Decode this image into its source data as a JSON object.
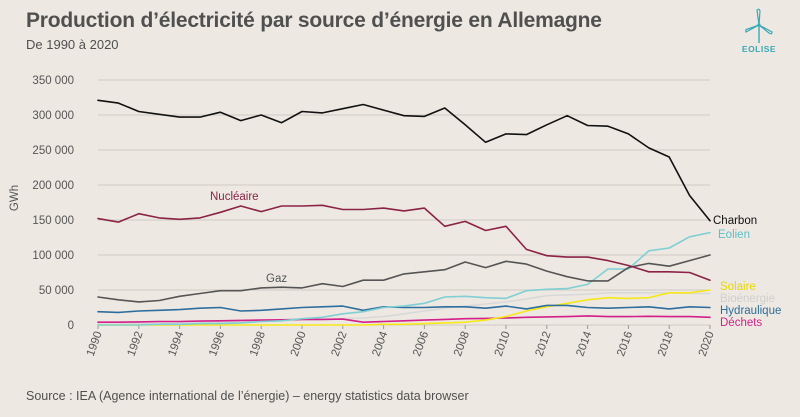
{
  "title": "Production d’électricité par source d’énergie en Allemagne",
  "subtitle": "De 1990 à 2020",
  "source": "Source : IEA (Agence international de l’énergie) – energy statistics data browser",
  "logo": {
    "text": "EOLISE"
  },
  "colors": {
    "background": "#ede8e2",
    "grid": "#cfcac4"
  },
  "chart_data": {
    "type": "line",
    "title": "Production d’électricité par source d’énergie en Allemagne",
    "subtitle": "De 1990 à 2020",
    "xlabel": "",
    "ylabel": "GWh",
    "xlim": [
      1990,
      2020
    ],
    "ylim": [
      0,
      350000
    ],
    "grid": true,
    "y_ticks": [
      0,
      50000,
      100000,
      150000,
      200000,
      250000,
      300000,
      350000
    ],
    "y_tick_labels": [
      "0",
      "50 000",
      "100 000",
      "150 000",
      "200 000",
      "250 000",
      "300 000",
      "350 000"
    ],
    "x_ticks": [
      1990,
      1992,
      1994,
      1996,
      1998,
      2000,
      2002,
      2004,
      2006,
      2008,
      2010,
      2012,
      2014,
      2016,
      2018,
      2020
    ],
    "x_tick_labels": [
      "1990",
      "1992",
      "1994",
      "1996",
      "1998",
      "2000",
      "2002",
      "2004",
      "2006",
      "2008",
      "2010",
      "2012",
      "2014",
      "2016",
      "2018",
      "2020"
    ],
    "x": [
      1990,
      1991,
      1992,
      1993,
      1994,
      1995,
      1996,
      1997,
      1998,
      1999,
      2000,
      2001,
      2002,
      2003,
      2004,
      2005,
      2006,
      2007,
      2008,
      2009,
      2010,
      2011,
      2012,
      2013,
      2014,
      2015,
      2016,
      2017,
      2018,
      2019,
      2020
    ],
    "series": [
      {
        "name": "Charbon",
        "color": "#111111",
        "values": [
          321000,
          317000,
          305000,
          301000,
          297000,
          297000,
          304000,
          292000,
          300000,
          289000,
          305000,
          303000,
          309000,
          315000,
          307000,
          299000,
          298000,
          310000,
          286000,
          261000,
          273000,
          272000,
          286000,
          299000,
          285000,
          284000,
          273000,
          253000,
          240000,
          185000,
          149000
        ]
      },
      {
        "name": "Nucléaire",
        "color": "#8b2346",
        "values": [
          152000,
          147000,
          159000,
          153000,
          151000,
          153000,
          161000,
          170000,
          162000,
          170000,
          170000,
          171000,
          165000,
          165000,
          167000,
          163000,
          167000,
          141000,
          148000,
          135000,
          141000,
          108000,
          99000,
          97000,
          97000,
          92000,
          85000,
          76000,
          76000,
          75000,
          64000
        ]
      },
      {
        "name": "Gaz",
        "color": "#555555",
        "values": [
          40000,
          36000,
          33000,
          35000,
          41000,
          45000,
          49000,
          49000,
          53000,
          54000,
          53000,
          59000,
          55000,
          64000,
          64000,
          73000,
          76000,
          79000,
          90000,
          82000,
          91000,
          87000,
          77000,
          69000,
          63000,
          63000,
          82000,
          88000,
          84000,
          92000,
          100000
        ]
      },
      {
        "name": "Eolien",
        "color": "#7fcfd4",
        "values": [
          0,
          0,
          0,
          1000,
          1000,
          2000,
          2000,
          3000,
          5000,
          6000,
          9000,
          11000,
          16000,
          19000,
          25000,
          27000,
          31000,
          40000,
          41000,
          39000,
          38000,
          49000,
          51000,
          52000,
          58000,
          80000,
          80000,
          106000,
          110000,
          126000,
          132000
        ]
      },
      {
        "name": "Solaire",
        "color": "#f7e819",
        "values": [
          0,
          0,
          0,
          0,
          0,
          0,
          0,
          0,
          0,
          0,
          0,
          0,
          0,
          0,
          1000,
          1000,
          2000,
          3000,
          4000,
          7000,
          12000,
          20000,
          26000,
          31000,
          36000,
          39000,
          38000,
          39000,
          46000,
          46000,
          50000
        ]
      },
      {
        "name": "Bioénergie",
        "color": "#d9d9d9",
        "values": [
          1000,
          1000,
          2000,
          2000,
          3000,
          3000,
          4000,
          4000,
          5000,
          6000,
          7000,
          8000,
          9000,
          10000,
          12000,
          16000,
          20000,
          24000,
          27000,
          30000,
          33000,
          37000,
          42000,
          43000,
          44000,
          46000,
          46000,
          46000,
          46000,
          45000,
          45000
        ]
      },
      {
        "name": "Hydraulique",
        "color": "#2d6e9e",
        "values": [
          19000,
          18000,
          20000,
          21000,
          22000,
          24000,
          25000,
          20000,
          21000,
          23000,
          25000,
          26000,
          27000,
          21000,
          26000,
          25000,
          25000,
          26000,
          26000,
          24000,
          27000,
          23000,
          28000,
          28000,
          25000,
          24000,
          25000,
          26000,
          23000,
          26000,
          25000
        ]
      },
      {
        "name": "Déchets",
        "color": "#d21f8a",
        "values": [
          4000,
          4000,
          4500,
          5000,
          5000,
          5500,
          6000,
          6500,
          7000,
          7500,
          8000,
          8000,
          8500,
          4000,
          5000,
          6000,
          7000,
          8000,
          9000,
          9500,
          10000,
          11000,
          11500,
          12000,
          13000,
          12000,
          12000,
          12500,
          12000,
          12000,
          11000
        ]
      }
    ],
    "annotations": [
      {
        "text": "Charbon",
        "series": "Charbon",
        "color": "#111111"
      },
      {
        "text": "Eolien",
        "series": "Eolien",
        "color": "#5fbfc6"
      },
      {
        "text": "Nucléaire",
        "series": "Nucléaire",
        "color": "#8b2346"
      },
      {
        "text": "Gaz",
        "series": "Gaz",
        "color": "#555555"
      },
      {
        "text": "Solaire",
        "series": "Solaire",
        "color": "#e8d800"
      },
      {
        "text": "Bioénergie",
        "series": "Bioénergie",
        "color": "#cfcfcf"
      },
      {
        "text": "Hydraulique",
        "series": "Hydraulique",
        "color": "#2d6e9e"
      },
      {
        "text": "Déchets",
        "series": "Déchets",
        "color": "#d21f8a"
      }
    ]
  }
}
